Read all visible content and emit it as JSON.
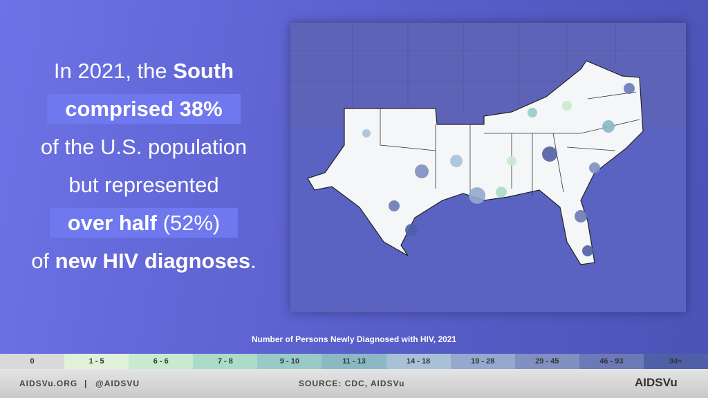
{
  "headline": {
    "lines": [
      {
        "highlight": false,
        "segments": [
          {
            "text": "In 2021, the ",
            "bold": false
          },
          {
            "text": "South",
            "bold": true
          }
        ]
      },
      {
        "highlight": true,
        "segments": [
          {
            "text": "comprised 38%",
            "bold": true
          }
        ]
      },
      {
        "highlight": false,
        "segments": [
          {
            "text": "of the U.S. population",
            "bold": false
          }
        ]
      },
      {
        "highlight": false,
        "segments": [
          {
            "text": "but represented",
            "bold": false
          }
        ]
      },
      {
        "highlight": true,
        "segments": [
          {
            "text": "over half",
            "bold": true
          },
          {
            "text": " (52%)",
            "bold": false
          }
        ]
      },
      {
        "highlight": false,
        "segments": [
          {
            "text": "of ",
            "bold": false
          },
          {
            "text": "new HIV diagnoses",
            "bold": true
          },
          {
            "text": ".",
            "bold": false
          }
        ]
      }
    ]
  },
  "legend": {
    "title": "Number of Persons Newly Diagnosed with HIV, 2021",
    "bins": [
      {
        "label": "0",
        "color": "#d9d9d9"
      },
      {
        "label": "1 - 5",
        "color": "#e2f1d9"
      },
      {
        "label": "6 - 6",
        "color": "#c8eace"
      },
      {
        "label": "7 - 8",
        "color": "#abdcc7"
      },
      {
        "label": "9 - 10",
        "color": "#98cbc8"
      },
      {
        "label": "11 - 13",
        "color": "#8bb8c4"
      },
      {
        "label": "14 - 18",
        "color": "#a9c1d7"
      },
      {
        "label": "19 - 28",
        "color": "#94a9cd"
      },
      {
        "label": "29 - 45",
        "color": "#8090c1"
      },
      {
        "label": "46 - 93",
        "color": "#6b7ab7"
      },
      {
        "label": "94+",
        "color": "#5060a6"
      }
    ]
  },
  "footer": {
    "site": "AIDSVu.ORG",
    "separator": "|",
    "handle": "@AIDSVU",
    "source": "SOURCE: CDC, AIDSVu",
    "logo": "AIDSVu"
  }
}
